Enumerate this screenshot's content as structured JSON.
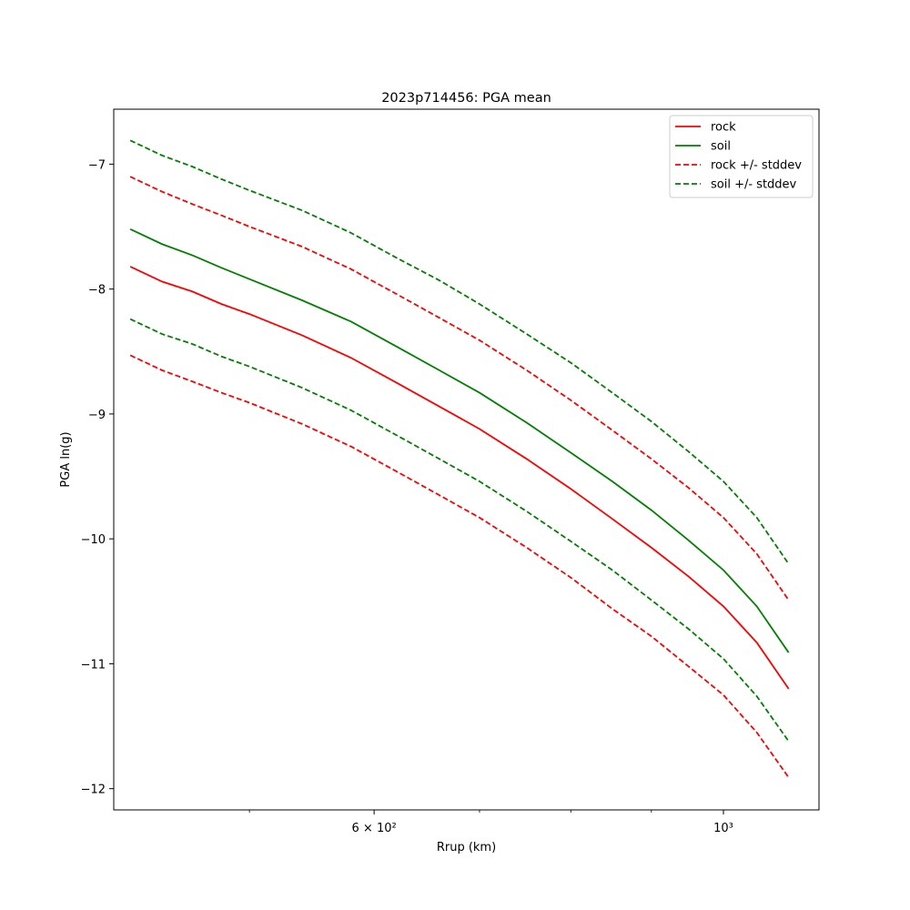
{
  "chart_data": {
    "type": "line",
    "title": "2023p714456: PGA mean",
    "xlabel": "Rrup (km)",
    "ylabel": "PGA ln(g)",
    "xscale": "log",
    "xlim": [
      410,
      1150
    ],
    "ylim": [
      -12.17,
      -6.56
    ],
    "x": [
      420,
      440,
      460,
      480,
      500,
      540,
      580,
      620,
      660,
      700,
      750,
      800,
      850,
      900,
      950,
      1000,
      1050,
      1100
    ],
    "x_major_ticks": [
      {
        "value": 600,
        "label": "6 × 10²"
      },
      {
        "value": 1000,
        "label": "10³"
      }
    ],
    "x_minor_ticks": [
      500,
      700,
      800,
      900
    ],
    "y_ticks": [
      {
        "value": -7,
        "label": "−7"
      },
      {
        "value": -8,
        "label": "−8"
      },
      {
        "value": -9,
        "label": "−9"
      },
      {
        "value": -10,
        "label": "−10"
      },
      {
        "value": -11,
        "label": "−11"
      },
      {
        "value": -12,
        "label": "−12"
      }
    ],
    "series": [
      {
        "name": "rock",
        "color": "#ff0000",
        "style": "solid",
        "values": [
          -7.82,
          -7.94,
          -8.02,
          -8.12,
          -8.2,
          -8.37,
          -8.55,
          -8.75,
          -8.94,
          -9.12,
          -9.36,
          -9.6,
          -9.84,
          -10.07,
          -10.3,
          -10.54,
          -10.83,
          -11.2
        ]
      },
      {
        "name": "soil",
        "color": "#008000",
        "style": "solid",
        "values": [
          -7.52,
          -7.64,
          -7.73,
          -7.83,
          -7.92,
          -8.09,
          -8.26,
          -8.46,
          -8.65,
          -8.83,
          -9.07,
          -9.31,
          -9.54,
          -9.77,
          -10.01,
          -10.25,
          -10.54,
          -10.91
        ]
      },
      {
        "name": "rock",
        "color": "#ff0000",
        "style": "dashed",
        "legend": false,
        "values": [
          -7.1,
          -7.22,
          -7.32,
          -7.41,
          -7.5,
          -7.66,
          -7.84,
          -8.04,
          -8.23,
          -8.41,
          -8.65,
          -8.89,
          -9.13,
          -9.36,
          -9.59,
          -9.83,
          -10.12,
          -10.49
        ]
      },
      {
        "name": "rock +/- stddev",
        "color": "#ff0000",
        "style": "dashed",
        "values": [
          -8.53,
          -8.65,
          -8.74,
          -8.83,
          -8.91,
          -9.08,
          -9.26,
          -9.46,
          -9.65,
          -9.83,
          -10.07,
          -10.31,
          -10.56,
          -10.78,
          -11.02,
          -11.25,
          -11.55,
          -11.91
        ]
      },
      {
        "name": "soil",
        "color": "#008000",
        "style": "dashed",
        "legend": false,
        "values": [
          -6.81,
          -6.93,
          -7.02,
          -7.12,
          -7.21,
          -7.37,
          -7.55,
          -7.75,
          -7.93,
          -8.12,
          -8.36,
          -8.59,
          -8.83,
          -9.06,
          -9.3,
          -9.54,
          -9.83,
          -10.2
        ]
      },
      {
        "name": "soil +/- stddev",
        "color": "#008000",
        "style": "dashed",
        "values": [
          -8.24,
          -8.36,
          -8.44,
          -8.54,
          -8.62,
          -8.79,
          -8.97,
          -9.17,
          -9.36,
          -9.54,
          -9.78,
          -10.02,
          -10.25,
          -10.49,
          -10.72,
          -10.96,
          -11.26,
          -11.62
        ]
      }
    ],
    "legend": {
      "placement": "top-right",
      "entries": [
        {
          "label": "rock",
          "color": "#ff0000",
          "style": "solid"
        },
        {
          "label": "soil",
          "color": "#008000",
          "style": "solid"
        },
        {
          "label": "rock +/- stddev",
          "color": "#ff0000",
          "style": "dashed"
        },
        {
          "label": "soil +/- stddev",
          "color": "#008000",
          "style": "dashed"
        }
      ]
    },
    "grid": false
  }
}
